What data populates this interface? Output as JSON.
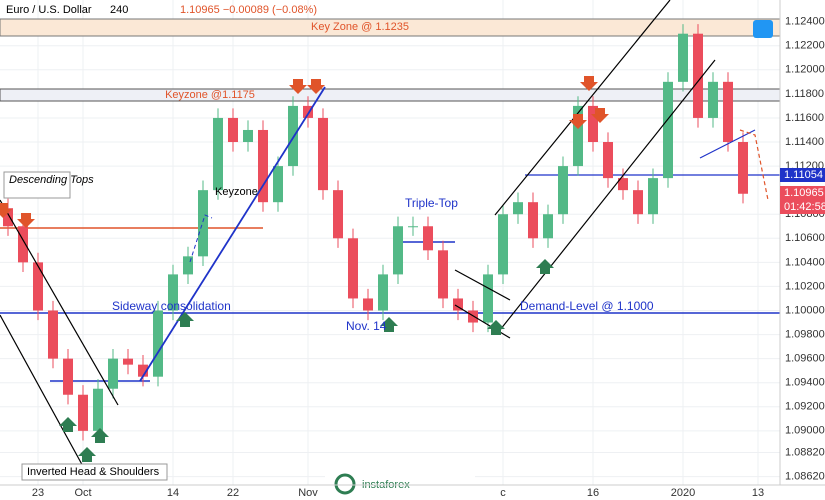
{
  "chart_data": {
    "type": "candlestick",
    "title": "Euro / U.S. Dollar",
    "interval": "240",
    "quote": "1.10965 −0.00089 (−0.08%)",
    "up_color": "#53b987",
    "down_color": "#eb4d5c",
    "grid": true,
    "ylim": [
      1.0855,
      1.1258
    ],
    "yticks": [
      {
        "value": 1.124,
        "label": "1.12400"
      },
      {
        "value": 1.122,
        "label": "1.12200"
      },
      {
        "value": 1.12,
        "label": "1.12000"
      },
      {
        "value": 1.118,
        "label": "1.11800"
      },
      {
        "value": 1.116,
        "label": "1.11600"
      },
      {
        "value": 1.114,
        "label": "1.11400"
      },
      {
        "value": 1.112,
        "label": "1.11200"
      },
      {
        "value": 1.108,
        "label": "1.10800"
      },
      {
        "value": 1.106,
        "label": "1.10600"
      },
      {
        "value": 1.104,
        "label": "1.10400"
      },
      {
        "value": 1.102,
        "label": "1.10200"
      },
      {
        "value": 1.1,
        "label": "1.10000"
      },
      {
        "value": 1.098,
        "label": "1.09800"
      },
      {
        "value": 1.096,
        "label": "1.09600"
      },
      {
        "value": 1.094,
        "label": "1.09400"
      },
      {
        "value": 1.092,
        "label": "1.09200"
      },
      {
        "value": 1.09,
        "label": "1.09000"
      },
      {
        "value": 1.0882,
        "label": "1.08820"
      },
      {
        "value": 1.0862,
        "label": "1.08620"
      }
    ],
    "xticks": [
      {
        "value": 2,
        "label": "23"
      },
      {
        "value": 5,
        "label": "Oct"
      },
      {
        "value": 11,
        "label": "14"
      },
      {
        "value": 15,
        "label": "22"
      },
      {
        "value": 20,
        "label": "Nov"
      },
      {
        "value": 33,
        "label": "c"
      },
      {
        "value": 39,
        "label": "16"
      },
      {
        "value": 45,
        "label": "2020"
      },
      {
        "value": 50,
        "label": "13"
      }
    ],
    "open": [
      1.1085,
      1.107,
      1.104,
      1.1,
      1.096,
      1.093,
      1.09,
      1.0935,
      1.096,
      1.0955,
      1.0945,
      1.1,
      1.103,
      1.1045,
      1.11,
      1.116,
      1.114,
      1.115,
      1.109,
      1.112,
      1.117,
      1.116,
      1.11,
      1.106,
      1.101,
      1.1,
      1.103,
      1.107,
      1.107,
      1.105,
      1.101,
      1.1,
      1.099,
      1.103,
      1.108,
      1.109,
      1.106,
      1.108,
      1.112,
      1.117,
      1.114,
      1.111,
      1.11,
      1.108,
      1.111,
      1.119,
      1.123,
      1.116,
      1.119,
      1.114
    ],
    "high": [
      1.1093,
      1.1078,
      1.1048,
      1.1008,
      1.0968,
      1.0938,
      1.0943,
      1.0968,
      1.0968,
      1.0963,
      1.1008,
      1.1038,
      1.1053,
      1.1108,
      1.1168,
      1.1168,
      1.1158,
      1.1158,
      1.1128,
      1.1178,
      1.1178,
      1.1168,
      1.1108,
      1.1068,
      1.1018,
      1.1038,
      1.1078,
      1.1078,
      1.1078,
      1.1058,
      1.1018,
      1.1008,
      1.1038,
      1.1088,
      1.1098,
      1.1098,
      1.1088,
      1.1128,
      1.1178,
      1.1178,
      1.1148,
      1.1118,
      1.1108,
      1.1118,
      1.1198,
      1.1238,
      1.1238,
      1.1198,
      1.1198,
      1.1148
    ],
    "low": [
      1.1062,
      1.1032,
      1.0992,
      1.0952,
      1.0922,
      1.0892,
      1.0892,
      1.0927,
      1.0947,
      1.0937,
      1.0937,
      1.0992,
      1.1022,
      1.1037,
      1.1092,
      1.1132,
      1.1132,
      1.1082,
      1.1082,
      1.1112,
      1.1152,
      1.1092,
      1.1052,
      1.1002,
      1.0992,
      1.0992,
      1.1022,
      1.1062,
      1.1042,
      1.1002,
      1.0992,
      1.0982,
      1.0982,
      1.1022,
      1.1072,
      1.1052,
      1.1052,
      1.1072,
      1.1112,
      1.1132,
      1.1102,
      1.1092,
      1.1072,
      1.1072,
      1.1102,
      1.1182,
      1.1152,
      1.1152,
      1.1132,
      1.1089
    ],
    "close": [
      1.107,
      1.104,
      1.1,
      1.096,
      1.093,
      1.09,
      1.0935,
      1.096,
      1.0955,
      1.0945,
      1.1,
      1.103,
      1.1045,
      1.11,
      1.116,
      1.114,
      1.115,
      1.109,
      1.112,
      1.117,
      1.116,
      1.11,
      1.106,
      1.101,
      1.1,
      1.103,
      1.107,
      1.107,
      1.105,
      1.101,
      1.1,
      1.099,
      1.103,
      1.108,
      1.109,
      1.106,
      1.108,
      1.112,
      1.117,
      1.114,
      1.111,
      1.11,
      1.108,
      1.111,
      1.119,
      1.123,
      1.116,
      1.119,
      1.114,
      1.1097
    ],
    "price_labels": {
      "level": "1.11054",
      "last": "1.10965",
      "countdown": "01:42:58"
    },
    "annotations": {
      "key_zone": "Key Zone @ 1.1235",
      "keyzone_1175": "Keyzone @1.1175",
      "descending_tops": "Descending Tops",
      "keyzone": "Keyzone",
      "triple_top": "Triple-Top",
      "sideway": "Sideway consolidation",
      "demand": "Demand-Level @ 1.1000",
      "nov14": "Nov. 14",
      "ihs": "Inverted Head & Shoulders",
      "brand": "instaforex"
    }
  }
}
